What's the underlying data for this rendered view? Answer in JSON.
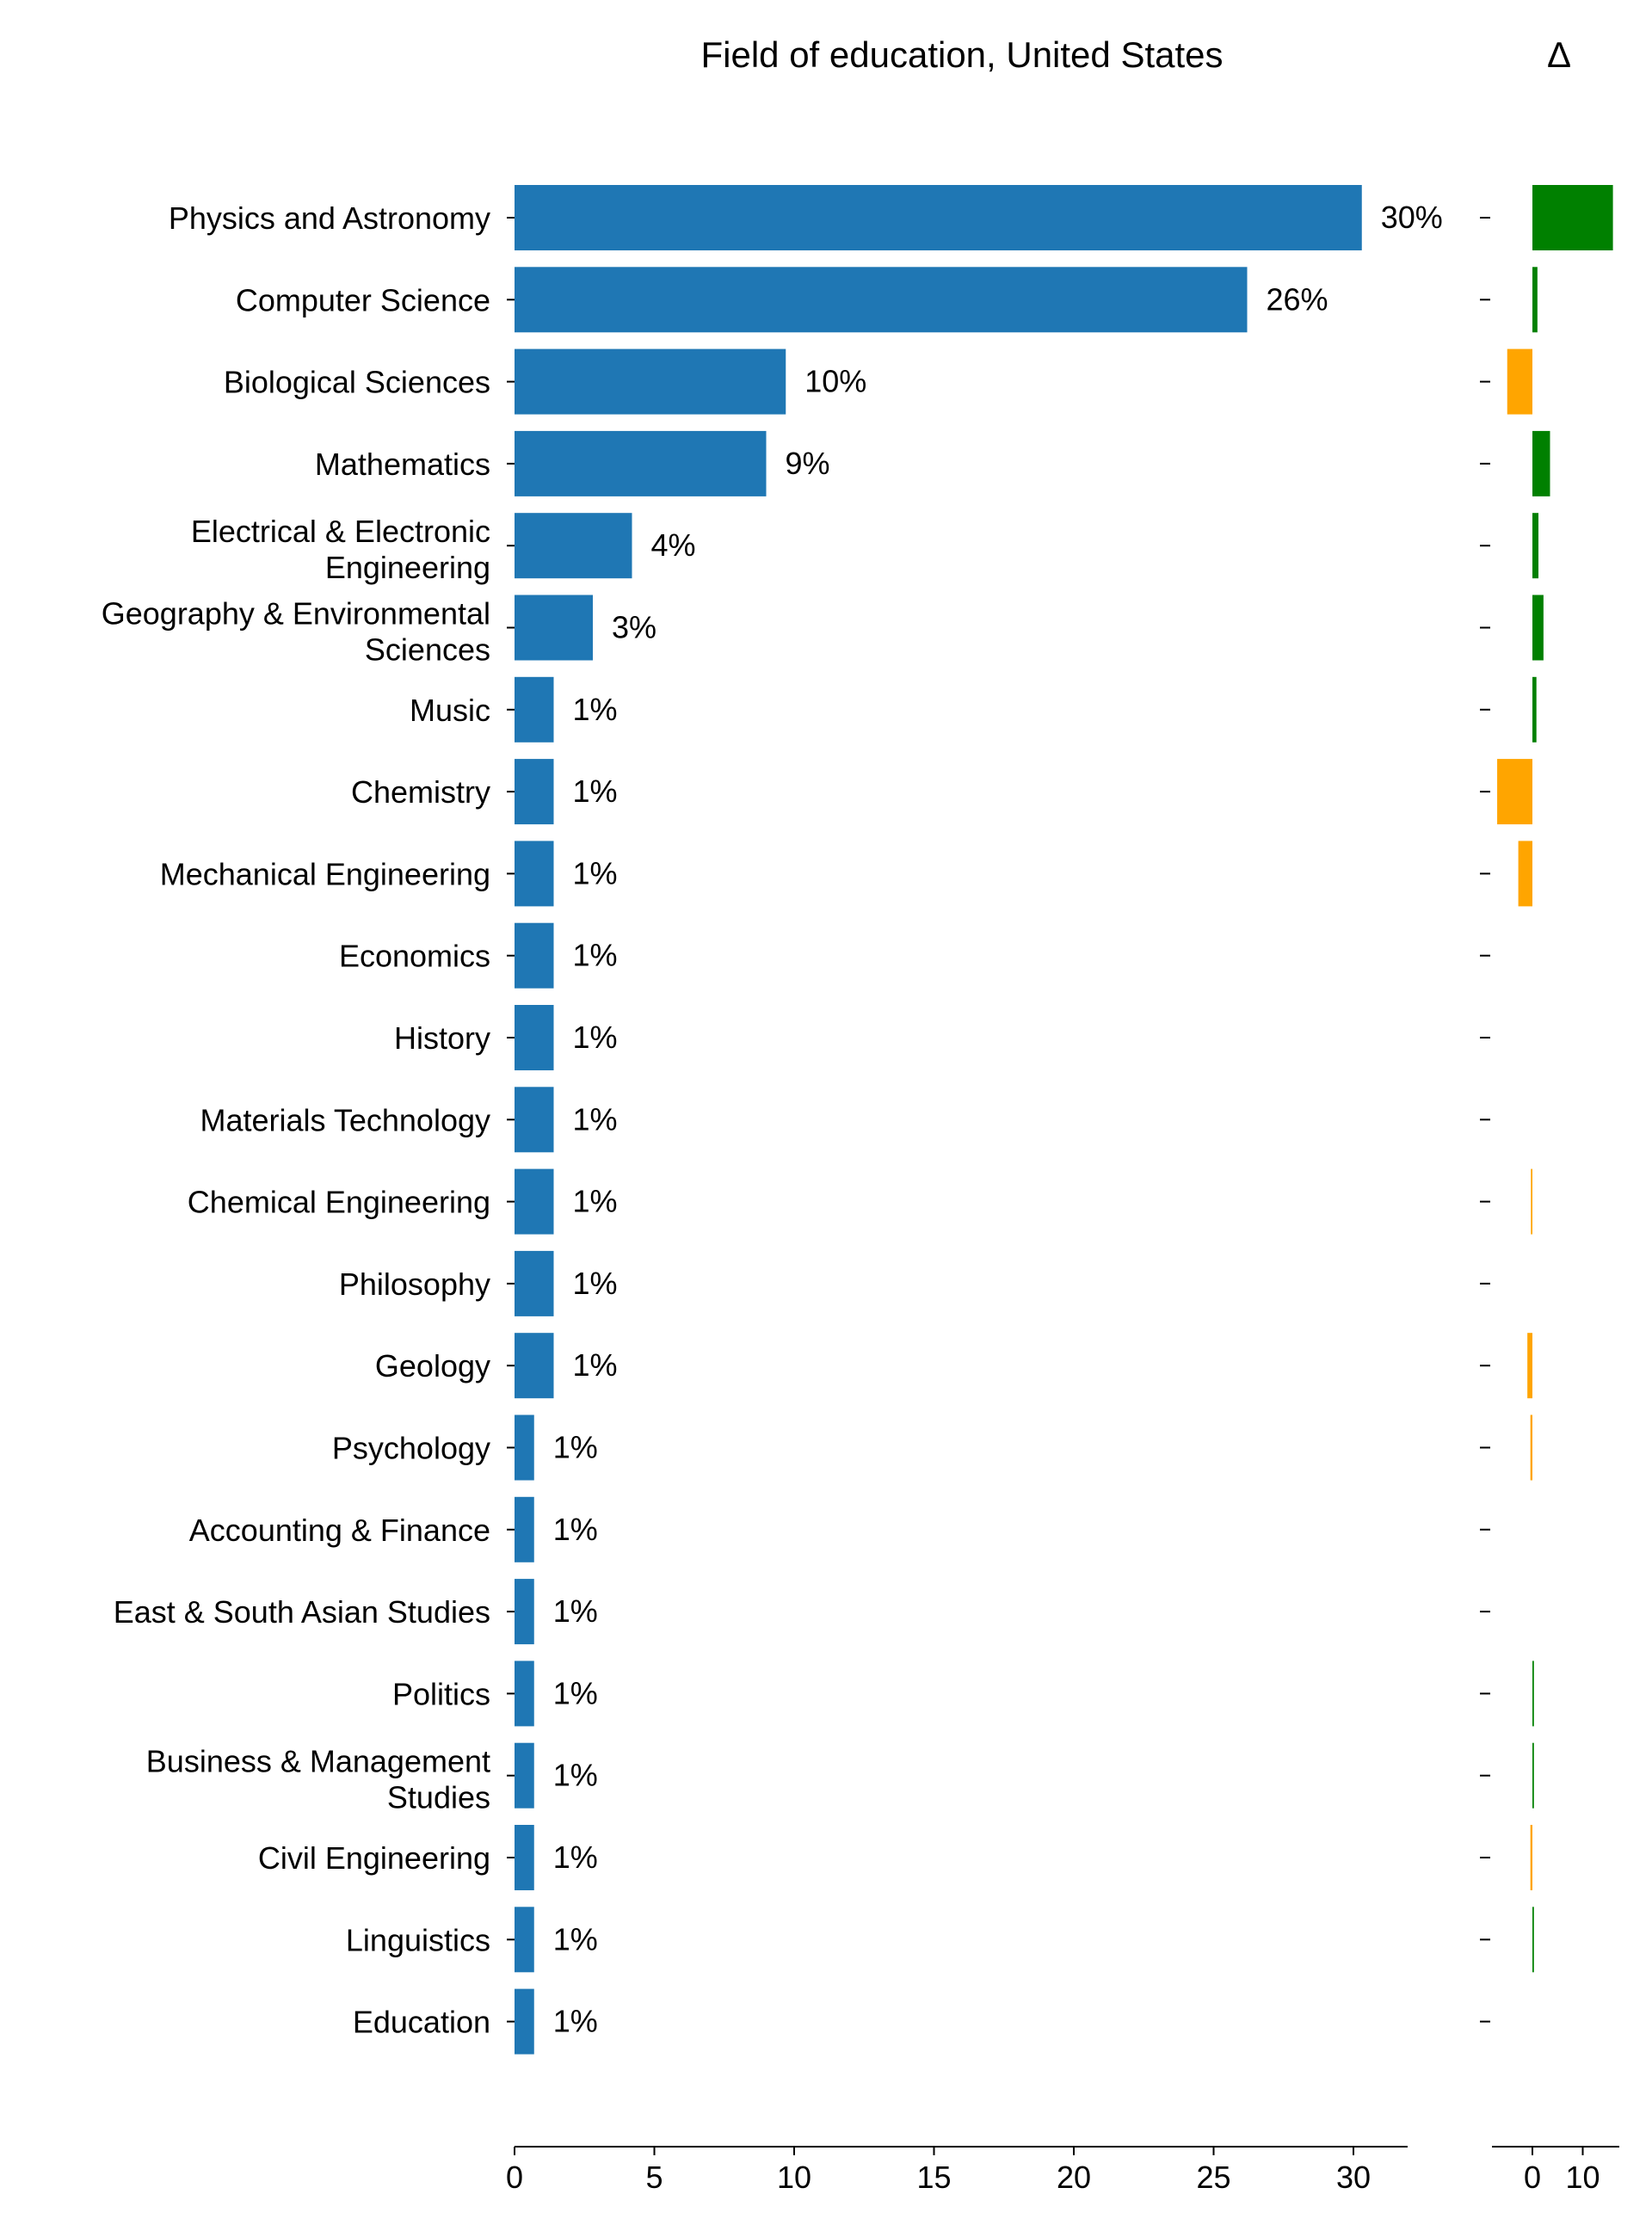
{
  "chart_data": [
    {
      "type": "bar",
      "orientation": "horizontal",
      "title": "Field of education, United States",
      "xlabel": "",
      "ylabel": "",
      "xlim": [
        0,
        32
      ],
      "x_ticks": [
        0,
        5,
        10,
        15,
        20,
        25,
        30
      ],
      "grid": false,
      "bar_color": "#1f77b4",
      "categories": [
        "Physics and Astronomy",
        "Computer Science",
        "Biological Sciences",
        "Mathematics",
        "Electrical & Electronic\nEngineering",
        "Geography & Environmental\nSciences",
        "Music",
        "Chemistry",
        "Mechanical Engineering",
        "Economics",
        "History",
        "Materials Technology",
        "Chemical Engineering",
        "Philosophy",
        "Geology",
        "Psychology",
        "Accounting & Finance",
        "East & South Asian Studies",
        "Politics",
        "Business & Management\nStudies",
        "Civil Engineering",
        "Linguistics",
        "Education"
      ],
      "values": [
        30.3,
        26.2,
        9.7,
        9.0,
        4.2,
        2.8,
        1.4,
        1.4,
        1.4,
        1.4,
        1.4,
        1.4,
        1.4,
        1.4,
        1.4,
        0.7,
        0.7,
        0.7,
        0.7,
        0.7,
        0.7,
        0.7,
        0.7
      ],
      "value_labels": [
        "30%",
        "26%",
        "10%",
        "9%",
        "4%",
        "3%",
        "1%",
        "1%",
        "1%",
        "1%",
        "1%",
        "1%",
        "1%",
        "1%",
        "1%",
        "1%",
        "1%",
        "1%",
        "1%",
        "1%",
        "1%",
        "1%",
        "1%"
      ]
    },
    {
      "type": "bar",
      "orientation": "horizontal",
      "title": "Δ",
      "xlim": [
        -8,
        16
      ],
      "x_ticks": [
        0,
        10
      ],
      "grid": false,
      "positive_color": "#008000",
      "negative_color": "#ffa500",
      "values": [
        16.0,
        1.0,
        -5.0,
        3.5,
        1.2,
        2.2,
        0.8,
        -7.0,
        -2.8,
        0,
        0,
        0,
        -0.3,
        0,
        -1.0,
        -0.4,
        0,
        0,
        0.3,
        0.3,
        -0.4,
        0.3,
        0
      ]
    }
  ]
}
